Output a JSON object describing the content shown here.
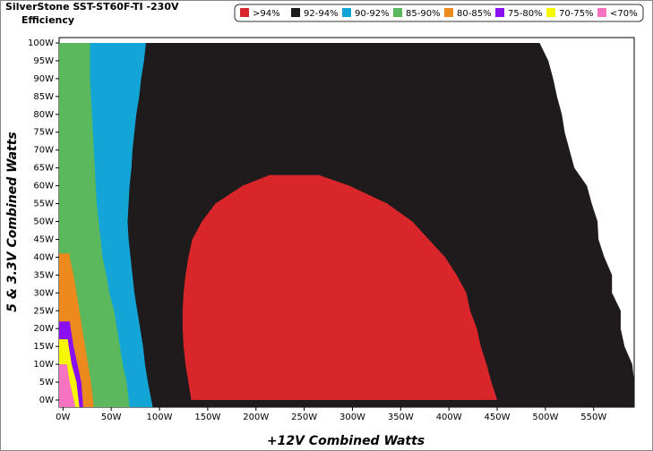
{
  "chart_data": {
    "type": "area",
    "title": "SilverStone SST-ST60F-TI -230V",
    "subtitle": "Efficiency",
    "x_label": "+12V Combined Watts",
    "y_label": "5 & 3.3V Combined Watts",
    "xlim": [
      -4,
      592
    ],
    "ylim": [
      -2,
      101.5
    ],
    "xticks": [
      {
        "value": 0,
        "label": "0W"
      },
      {
        "value": 50,
        "label": "50W"
      },
      {
        "value": 100,
        "label": "100W"
      },
      {
        "value": 150,
        "label": "150W"
      },
      {
        "value": 200,
        "label": "200W"
      },
      {
        "value": 250,
        "label": "250W"
      },
      {
        "value": 300,
        "label": "300W"
      },
      {
        "value": 350,
        "label": "350W"
      },
      {
        "value": 400,
        "label": "400W"
      },
      {
        "value": 450,
        "label": "450W"
      },
      {
        "value": 500,
        "label": "500W"
      },
      {
        "value": 550,
        "label": "550W"
      }
    ],
    "yticks": [
      {
        "value": 0,
        "label": "0W"
      },
      {
        "value": 5,
        "label": "5W"
      },
      {
        "value": 10,
        "label": "10W"
      },
      {
        "value": 15,
        "label": "15W"
      },
      {
        "value": 20,
        "label": "20W"
      },
      {
        "value": 25,
        "label": "25W"
      },
      {
        "value": 30,
        "label": "30W"
      },
      {
        "value": 35,
        "label": "35W"
      },
      {
        "value": 40,
        "label": "40W"
      },
      {
        "value": 45,
        "label": "45W"
      },
      {
        "value": 50,
        "label": "50W"
      },
      {
        "value": 55,
        "label": "55W"
      },
      {
        "value": 60,
        "label": "60W"
      },
      {
        "value": 65,
        "label": "65W"
      },
      {
        "value": 70,
        "label": "70W"
      },
      {
        "value": 75,
        "label": "75W"
      },
      {
        "value": 80,
        "label": "80W"
      },
      {
        "value": 85,
        "label": "85W"
      },
      {
        "value": 90,
        "label": "90W"
      },
      {
        "value": 95,
        "label": "95W"
      },
      {
        "value": 100,
        "label": "100W"
      }
    ],
    "series": [
      {
        "name": ">94%",
        "color": "#d9262b",
        "y": [
          0,
          5,
          10,
          15,
          20,
          25,
          30,
          35,
          40,
          45,
          50,
          55,
          60,
          63
        ],
        "x": [
          133,
          130,
          127,
          125,
          124,
          124,
          125,
          127,
          130,
          134,
          144,
          158,
          186,
          214
        ],
        "x2": [
          450,
          444,
          439,
          433,
          429,
          422,
          418,
          408,
          396,
          379,
          362,
          336,
          297,
          265
        ]
      },
      {
        "name": "92-94%",
        "color": "#1f1a1c",
        "y": [
          0,
          5,
          10,
          15,
          20,
          25,
          30,
          35,
          40,
          45,
          50,
          55,
          60,
          65,
          70,
          75,
          80,
          85,
          90,
          95,
          100
        ],
        "x": [
          592,
          592,
          590,
          582,
          578,
          578,
          569,
          569,
          561,
          555,
          554,
          548,
          543,
          530,
          525,
          520,
          517,
          512,
          508,
          503,
          494
        ]
      },
      {
        "name": "90-92%",
        "color": "#12a5d6",
        "y": [
          0,
          5,
          10,
          15,
          20,
          25,
          30,
          35,
          40,
          45,
          50,
          55,
          60,
          65,
          70,
          75,
          80,
          85,
          90,
          95,
          100
        ],
        "x": [
          93,
          88,
          85,
          83,
          80,
          77,
          74,
          72,
          70,
          68,
          67,
          68,
          69,
          71,
          72,
          74,
          76,
          79,
          81,
          84,
          86
        ]
      },
      {
        "name": "85-90%",
        "color": "#5cb85c",
        "y": [
          0,
          5,
          10,
          15,
          20,
          25,
          30,
          35,
          40,
          45,
          50,
          55,
          60,
          65,
          70,
          75,
          80,
          85,
          90,
          95,
          100
        ],
        "x": [
          69,
          66,
          62,
          59,
          56,
          53,
          48,
          45,
          41,
          39,
          37,
          35,
          34,
          33,
          32,
          31,
          30,
          29,
          28,
          28,
          28
        ]
      },
      {
        "name": "80-85%",
        "color": "#ec8a1e",
        "y": [
          0,
          5,
          10,
          15,
          20,
          25,
          30,
          35,
          40,
          41
        ],
        "x": [
          32,
          29,
          26,
          23,
          20,
          17,
          14,
          11,
          7,
          7
        ]
      },
      {
        "name": "75-80%",
        "color": "#8a0ff0",
        "y": [
          0,
          5,
          10,
          15,
          20,
          22
        ],
        "x": [
          21,
          19,
          15,
          11,
          8,
          7
        ]
      },
      {
        "name": "70-75%",
        "color": "#f7f700",
        "y": [
          0,
          5,
          10,
          15,
          17
        ],
        "x": [
          17,
          14,
          9,
          6,
          5
        ]
      },
      {
        "name": "<70%",
        "color": "#f772c0",
        "y": [
          0,
          5,
          10
        ],
        "x": [
          13,
          7,
          4
        ]
      }
    ]
  }
}
